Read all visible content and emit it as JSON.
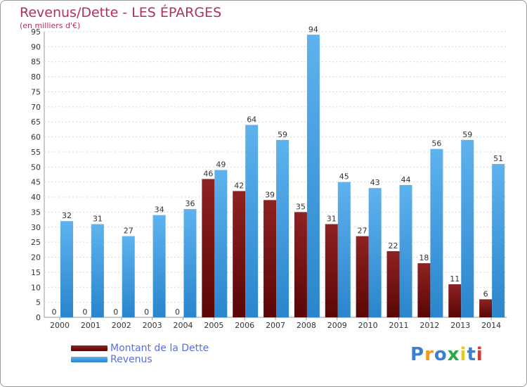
{
  "chart_data": {
    "type": "bar",
    "title": "Revenus/Dette - LES ÉPARGES",
    "subtitle": "(en milliers d'€)",
    "xlabel": "",
    "ylabel": "",
    "ylim": [
      0,
      95
    ],
    "yticks": [
      0,
      5,
      10,
      15,
      20,
      25,
      30,
      35,
      40,
      45,
      50,
      55,
      60,
      65,
      70,
      75,
      80,
      85,
      90,
      95
    ],
    "grid": true,
    "legend_position": "bottom-left",
    "categories": [
      "2000",
      "2001",
      "2002",
      "2003",
      "2004",
      "2005",
      "2006",
      "2007",
      "2008",
      "2009",
      "2010",
      "2011",
      "2012",
      "2013",
      "2014"
    ],
    "series": [
      {
        "name": "Montant de la Dette",
        "color": "#7a1515",
        "values": [
          0,
          0,
          0,
          0,
          0,
          46,
          42,
          39,
          35,
          31,
          27,
          22,
          18,
          11,
          6
        ]
      },
      {
        "name": "Revenus",
        "color": "#3d9ee0",
        "values": [
          32,
          31,
          27,
          34,
          36,
          49,
          64,
          59,
          94,
          45,
          43,
          44,
          56,
          59,
          51
        ]
      }
    ]
  },
  "logo": {
    "letters": [
      "P",
      "r",
      "o",
      "x",
      "i",
      "t",
      "i"
    ],
    "colors": [
      "#3a7fd0",
      "#f39a1e",
      "#3a7fd0",
      "#2aa84a",
      "#e8c81a",
      "#3a7fd0",
      "#d23a3a"
    ]
  }
}
